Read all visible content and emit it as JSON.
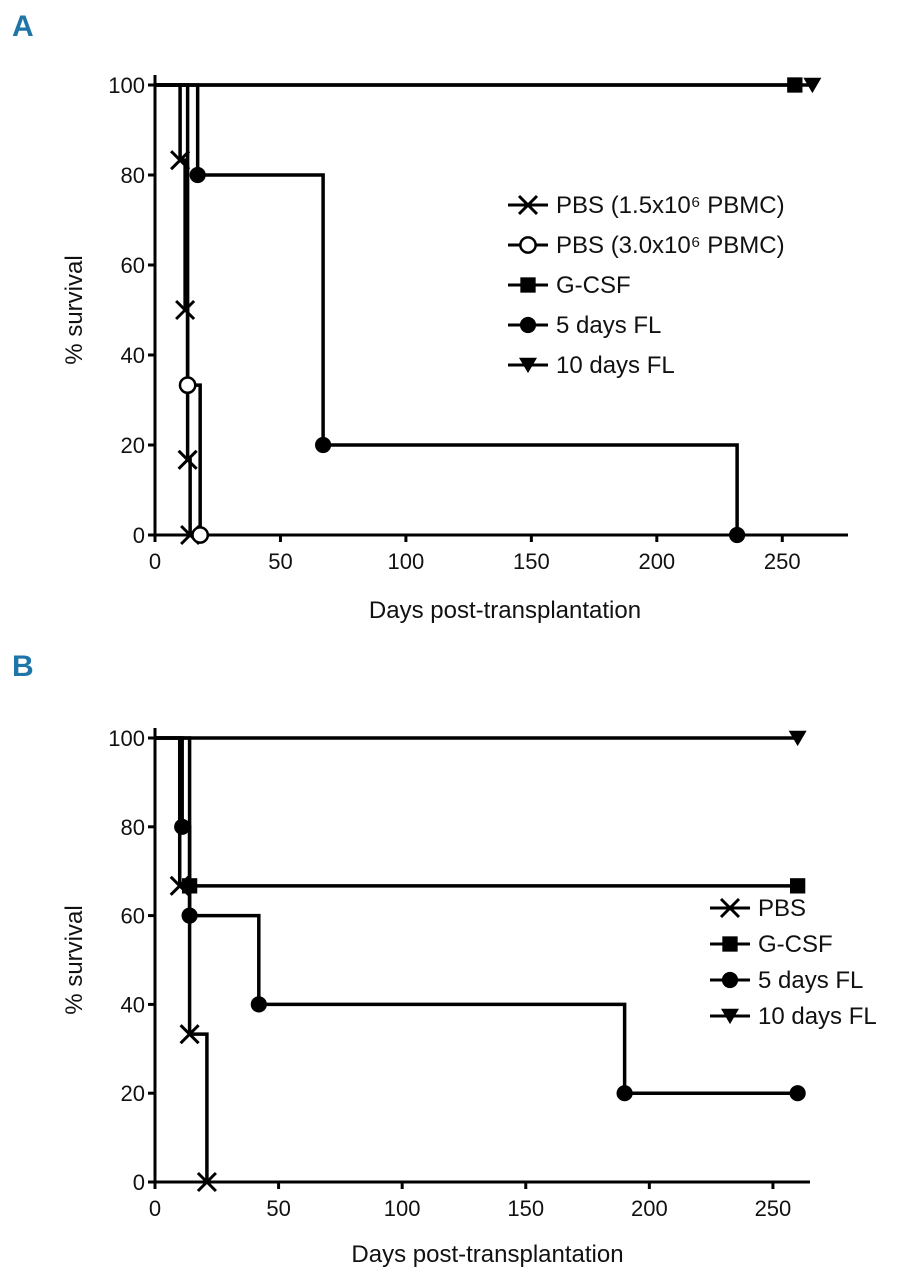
{
  "chart_data": [
    {
      "panel": "A",
      "type": "line",
      "step": true,
      "title": "",
      "xlabel": "Days post-transplantation",
      "ylabel": "% survival",
      "xlim": [
        0,
        275
      ],
      "ylim": [
        0,
        100
      ],
      "xticks": [
        0,
        50,
        100,
        150,
        200,
        250
      ],
      "yticks": [
        0,
        20,
        40,
        60,
        80,
        100
      ],
      "grid": false,
      "legend": "right",
      "series": [
        {
          "name": "PBS (1.5x10⁶ PBMC)",
          "marker": "x",
          "x": [
            0,
            10,
            12,
            13,
            14
          ],
          "y": [
            100,
            83.3,
            50,
            16.7,
            0
          ]
        },
        {
          "name": "PBS (3.0x10⁶ PBMC)",
          "marker": "open-circle",
          "x": [
            0,
            13,
            18
          ],
          "y": [
            100,
            33.3,
            0
          ]
        },
        {
          "name": "G-CSF",
          "marker": "square",
          "x": [
            0,
            255
          ],
          "y": [
            100,
            100
          ]
        },
        {
          "name": "5 days FL",
          "marker": "filled-circle",
          "x": [
            0,
            17,
            67,
            232
          ],
          "y": [
            100,
            80,
            20,
            0
          ]
        },
        {
          "name": "10 days FL",
          "marker": "triangle-down",
          "x": [
            0,
            262
          ],
          "y": [
            100,
            100
          ]
        }
      ]
    },
    {
      "panel": "B",
      "type": "line",
      "step": true,
      "title": "",
      "xlabel": "Days post-transplantation",
      "ylabel": "% survival",
      "xlim": [
        0,
        265
      ],
      "ylim": [
        0,
        100
      ],
      "xticks": [
        0,
        50,
        100,
        150,
        200,
        250
      ],
      "yticks": [
        0,
        20,
        40,
        60,
        80,
        100
      ],
      "grid": false,
      "legend": "right",
      "series": [
        {
          "name": "PBS",
          "marker": "x",
          "x": [
            0,
            10,
            14,
            21
          ],
          "y": [
            100,
            66.7,
            33.3,
            0
          ]
        },
        {
          "name": "G-CSF",
          "marker": "square",
          "x": [
            0,
            14,
            260
          ],
          "y": [
            100,
            66.7,
            66.7
          ]
        },
        {
          "name": "5 days FL",
          "marker": "filled-circle",
          "x": [
            0,
            11,
            14,
            42,
            190,
            260
          ],
          "y": [
            100,
            80,
            60,
            40,
            20,
            20
          ]
        },
        {
          "name": "10 days FL",
          "marker": "triangle-down",
          "x": [
            0,
            260
          ],
          "y": [
            100,
            100
          ]
        }
      ]
    }
  ]
}
